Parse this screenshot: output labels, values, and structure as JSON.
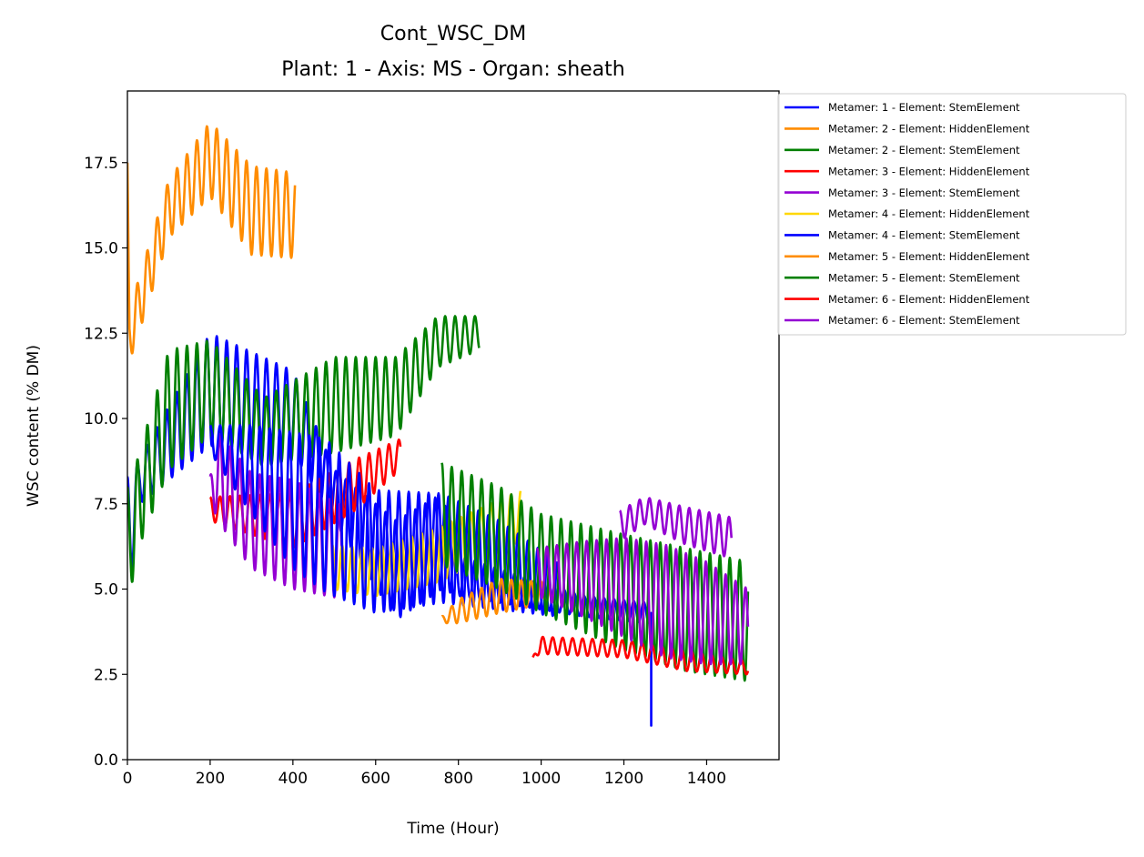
{
  "chart_data": {
    "type": "line",
    "title": "Cont_WSC_DM",
    "subtitle": "Plant: 1 - Axis: MS - Organ: sheath",
    "xlabel": "Time (Hour)",
    "ylabel": "WSC content (% DM)",
    "xlim": [
      0,
      1575
    ],
    "ylim": [
      0,
      19.6
    ],
    "xticks": [
      0,
      200,
      400,
      600,
      800,
      1000,
      1200,
      1400
    ],
    "yticks": [
      0.0,
      2.5,
      5.0,
      7.5,
      10.0,
      12.5,
      15.0,
      17.5
    ],
    "xtick_labels": [
      "0",
      "200",
      "400",
      "600",
      "800",
      "1000",
      "1200",
      "1400"
    ],
    "ytick_labels": [
      "0.0",
      "2.5",
      "5.0",
      "7.5",
      "10.0",
      "12.5",
      "15.0",
      "17.5"
    ],
    "grid": false,
    "legend_position": "outside-right-top",
    "cycle_period_hours": 24,
    "series": [
      {
        "name": "Metamer: 1 - Element: StemElement",
        "color": "#0000ff",
        "start": 0,
        "end": 1266,
        "peaks": [
          [
            5,
            8.3
          ],
          [
            200,
            12.5
          ],
          [
            400,
            11.4
          ],
          [
            500,
            8.5
          ],
          [
            650,
            7.0
          ],
          [
            760,
            7.8
          ],
          [
            800,
            6.0
          ],
          [
            1100,
            4.8
          ],
          [
            1266,
            4.6
          ]
        ],
        "troughs": [
          [
            0,
            4.5
          ],
          [
            30,
            7.5
          ],
          [
            200,
            9.2
          ],
          [
            400,
            9.0
          ],
          [
            500,
            7.0
          ],
          [
            650,
            4.1
          ],
          [
            760,
            5.0
          ],
          [
            800,
            4.8
          ],
          [
            1100,
            4.2
          ],
          [
            1266,
            4.0
          ]
        ],
        "spike": [
          1266,
          1.0
        ]
      },
      {
        "name": "Metamer: 2 - Element: HiddenElement",
        "color": "#ff8c00",
        "start": 0,
        "end": 405,
        "peaks": [
          [
            0,
            17.5
          ],
          [
            5,
            13.2
          ],
          [
            100,
            17.0
          ],
          [
            200,
            18.7
          ],
          [
            300,
            17.4
          ],
          [
            405,
            17.2
          ]
        ],
        "troughs": [
          [
            0,
            11.5
          ],
          [
            20,
            12.2
          ],
          [
            100,
            15.3
          ],
          [
            200,
            16.5
          ],
          [
            300,
            14.8
          ],
          [
            405,
            14.7
          ]
        ]
      },
      {
        "name": "Metamer: 2 - Element: StemElement",
        "color": "#008000",
        "start": 0,
        "end": 850,
        "peaks": [
          [
            5,
            8.0
          ],
          [
            100,
            12.0
          ],
          [
            200,
            12.3
          ],
          [
            330,
            10.6
          ],
          [
            500,
            11.8
          ],
          [
            650,
            11.8
          ],
          [
            750,
            13.0
          ],
          [
            850,
            13.0
          ]
        ],
        "troughs": [
          [
            0,
            4.5
          ],
          [
            30,
            6.3
          ],
          [
            100,
            8.5
          ],
          [
            200,
            9.5
          ],
          [
            330,
            8.6
          ],
          [
            500,
            9.0
          ],
          [
            650,
            9.5
          ],
          [
            750,
            11.5
          ],
          [
            850,
            12.0
          ]
        ]
      },
      {
        "name": "Metamer: 3 - Element: HiddenElement",
        "color": "#ff0000",
        "start": 200,
        "end": 660,
        "peaks": [
          [
            200,
            7.7
          ],
          [
            400,
            7.8
          ],
          [
            550,
            8.8
          ],
          [
            660,
            9.4
          ]
        ],
        "troughs": [
          [
            200,
            7.0
          ],
          [
            400,
            6.2
          ],
          [
            550,
            7.3
          ],
          [
            660,
            8.5
          ]
        ]
      },
      {
        "name": "Metamer: 3 - Element: StemElement",
        "color": "#9400d3",
        "start": 200,
        "end": 525,
        "peaks": [
          [
            200,
            8.3
          ],
          [
            220,
            9.6
          ],
          [
            300,
            8.4
          ],
          [
            400,
            8.2
          ],
          [
            525,
            7.4
          ]
        ],
        "troughs": [
          [
            200,
            7.5
          ],
          [
            230,
            6.8
          ],
          [
            300,
            5.6
          ],
          [
            400,
            5.0
          ],
          [
            525,
            4.7
          ]
        ]
      },
      {
        "name": "Metamer: 4 - Element: HiddenElement",
        "color": "#ffd700",
        "start": 495,
        "end": 950,
        "peaks": [
          [
            495,
            6.3
          ],
          [
            600,
            6.2
          ],
          [
            750,
            6.8
          ],
          [
            950,
            7.9
          ]
        ],
        "troughs": [
          [
            495,
            5.0
          ],
          [
            600,
            4.8
          ],
          [
            750,
            5.2
          ],
          [
            950,
            6.4
          ]
        ]
      },
      {
        "name": "Metamer: 4 - Element: StemElement",
        "color": "#0000ff",
        "start": 200,
        "end": 1040,
        "peaks": [
          [
            200,
            9.8
          ],
          [
            300,
            9.8
          ],
          [
            400,
            9.6
          ],
          [
            480,
            9.4
          ],
          [
            600,
            7.9
          ],
          [
            760,
            7.8
          ],
          [
            900,
            7.0
          ],
          [
            1040,
            5.8
          ]
        ],
        "troughs": [
          [
            200,
            9.0
          ],
          [
            300,
            7.2
          ],
          [
            400,
            5.6
          ],
          [
            480,
            4.9
          ],
          [
            600,
            4.3
          ],
          [
            760,
            4.6
          ],
          [
            900,
            4.4
          ],
          [
            1040,
            4.2
          ]
        ]
      },
      {
        "name": "Metamer: 5 - Element: HiddenElement",
        "color": "#ff8c00",
        "start": 760,
        "end": 1020,
        "peaks": [
          [
            760,
            4.2
          ],
          [
            800,
            4.7
          ],
          [
            900,
            5.3
          ],
          [
            1020,
            5.2
          ]
        ],
        "troughs": [
          [
            760,
            4.0
          ],
          [
            800,
            4.0
          ],
          [
            900,
            4.3
          ],
          [
            1020,
            4.6
          ]
        ]
      },
      {
        "name": "Metamer: 5 - Element: StemElement",
        "color": "#008000",
        "start": 760,
        "end": 1500,
        "peaks": [
          [
            760,
            8.7
          ],
          [
            900,
            8.0
          ],
          [
            1000,
            7.2
          ],
          [
            1200,
            6.6
          ],
          [
            1350,
            6.2
          ],
          [
            1500,
            5.8
          ]
        ],
        "troughs": [
          [
            760,
            5.7
          ],
          [
            900,
            5.0
          ],
          [
            1000,
            4.3
          ],
          [
            1200,
            3.2
          ],
          [
            1350,
            2.6
          ],
          [
            1500,
            2.3
          ]
        ]
      },
      {
        "name": "Metamer: 6 - Element: HiddenElement",
        "color": "#ff0000",
        "start": 980,
        "end": 1500,
        "peaks": [
          [
            980,
            3.0
          ],
          [
            1000,
            3.6
          ],
          [
            1200,
            3.5
          ],
          [
            1350,
            3.2
          ],
          [
            1500,
            2.9
          ]
        ],
        "troughs": [
          [
            980,
            3.0
          ],
          [
            1000,
            3.1
          ],
          [
            1200,
            3.0
          ],
          [
            1350,
            2.6
          ],
          [
            1500,
            2.5
          ]
        ]
      },
      {
        "name": "Metamer: 6 - Element: StemElement",
        "color": "#9400d3",
        "start": 990,
        "end": 1500,
        "peaks": [
          [
            990,
            6.2
          ],
          [
            1100,
            6.4
          ],
          [
            1200,
            6.5
          ],
          [
            1300,
            6.3
          ],
          [
            1400,
            5.8
          ],
          [
            1500,
            5.0
          ]
        ],
        "troughs": [
          [
            990,
            4.8
          ],
          [
            1100,
            4.2
          ],
          [
            1200,
            3.6
          ],
          [
            1300,
            3.0
          ],
          [
            1400,
            2.8
          ],
          [
            1500,
            2.8
          ]
        ]
      },
      {
        "name": "Metamer: 6 - Element: StemElement",
        "color": "#9400d3",
        "legend": false,
        "start": 1190,
        "end": 1460,
        "peaks": [
          [
            1190,
            7.3
          ],
          [
            1250,
            7.7
          ],
          [
            1350,
            7.4
          ],
          [
            1460,
            7.1
          ]
        ],
        "troughs": [
          [
            1190,
            6.4
          ],
          [
            1250,
            6.9
          ],
          [
            1350,
            6.3
          ],
          [
            1460,
            5.9
          ]
        ]
      }
    ]
  }
}
